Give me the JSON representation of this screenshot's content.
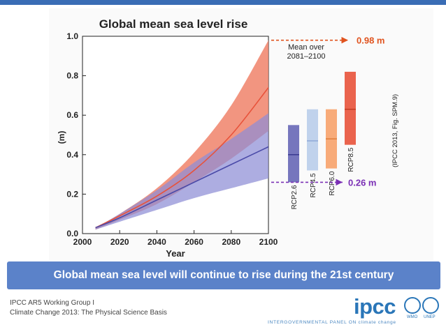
{
  "caption": "(IPCC 2013, Fig. SPM.9)",
  "banner": "Global mean sea level will continue to rise during the 21st century",
  "footer": {
    "line1": "IPCC AR5 Working Group I",
    "line2": "Climate Change 2013: The Physical Science Basis",
    "logo": "ipcc",
    "tagline": "INTERGOVERNMENTAL PANEL ON climate change",
    "wmo": "WMO",
    "unep": "UNEP"
  },
  "colors": {
    "rcp85": "#e8523a",
    "rcp85_band": "#f0826a",
    "rcp26": "#4a4aa8",
    "rcp26_band": "#8e8ed6",
    "rcp45": "#b9cdea",
    "rcp60": "#f7a26a",
    "annotation_red": "#e0531e",
    "annotation_purple": "#7a2fb5",
    "banner": "#5b82c9"
  },
  "chart_data": {
    "type": "area",
    "title": "Global mean sea level rise",
    "xlabel": "Year",
    "ylabel": "(m)",
    "xlim": [
      2000,
      2100
    ],
    "ylim": [
      0.0,
      1.0
    ],
    "xticks": [
      "2000",
      "2020",
      "2040",
      "2060",
      "2080",
      "2100"
    ],
    "yticks": [
      "0.0",
      "0.2",
      "0.4",
      "0.6",
      "0.8",
      "1.0"
    ],
    "series": [
      {
        "name": "RCP8.5",
        "x": [
          2007,
          2020,
          2040,
          2060,
          2080,
          2100
        ],
        "mean": [
          0.03,
          0.09,
          0.19,
          0.32,
          0.5,
          0.74
        ],
        "upper": [
          0.03,
          0.1,
          0.23,
          0.41,
          0.65,
          0.98
        ],
        "lower": [
          0.02,
          0.07,
          0.15,
          0.26,
          0.38,
          0.52
        ]
      },
      {
        "name": "RCP2.6",
        "x": [
          2007,
          2020,
          2040,
          2060,
          2080,
          2100
        ],
        "mean": [
          0.03,
          0.08,
          0.17,
          0.26,
          0.35,
          0.44
        ],
        "upper": [
          0.03,
          0.1,
          0.22,
          0.36,
          0.48,
          0.61
        ],
        "lower": [
          0.02,
          0.06,
          0.12,
          0.18,
          0.23,
          0.28
        ]
      }
    ],
    "bars_label": "Mean over 2081–2100",
    "bars": [
      {
        "name": "RCP2.6",
        "low": 0.26,
        "median": 0.4,
        "high": 0.55
      },
      {
        "name": "RCP4.5",
        "low": 0.32,
        "median": 0.47,
        "high": 0.63
      },
      {
        "name": "RCP6.0",
        "low": 0.33,
        "median": 0.48,
        "high": 0.63
      },
      {
        "name": "RCP8.5",
        "low": 0.45,
        "median": 0.63,
        "high": 0.82
      }
    ],
    "annotations": [
      {
        "text": "0.98 m",
        "value": 0.98
      },
      {
        "text": "0.26 m",
        "value": 0.26
      }
    ]
  }
}
